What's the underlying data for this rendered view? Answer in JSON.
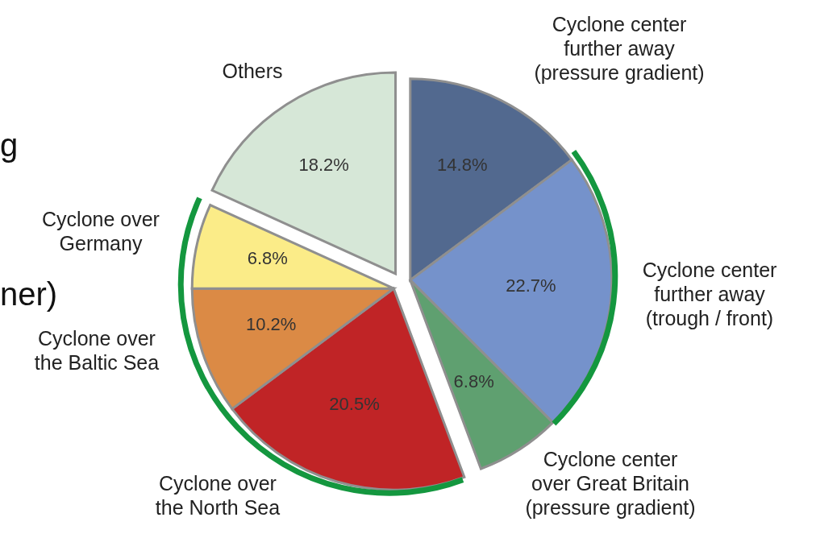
{
  "chart_data": {
    "type": "pie",
    "categories": [
      "Cyclone center\nfurther away\n(pressure gradient)",
      "Cyclone center\nfurther away\n(trough / front)",
      "Cyclone center\nover Great Britain\n(pressure gradient)",
      "Cyclone over\nthe North Sea",
      "Cyclone over\nthe Baltic Sea",
      "Cyclone over\nGermany",
      "Others"
    ],
    "values": [
      14.8,
      22.7,
      6.8,
      20.5,
      10.2,
      6.8,
      18.2
    ],
    "value_labels": [
      "14.8%",
      "22.7%",
      "6.8%",
      "20.5%",
      "10.2%",
      "6.8%",
      "18.2%"
    ],
    "colors": [
      "#52698f",
      "#7592cb",
      "#5fa070",
      "#c02426",
      "#db8a45",
      "#fbec88",
      "#d6e7d7"
    ],
    "annotations": [
      "g",
      "ner)"
    ]
  }
}
